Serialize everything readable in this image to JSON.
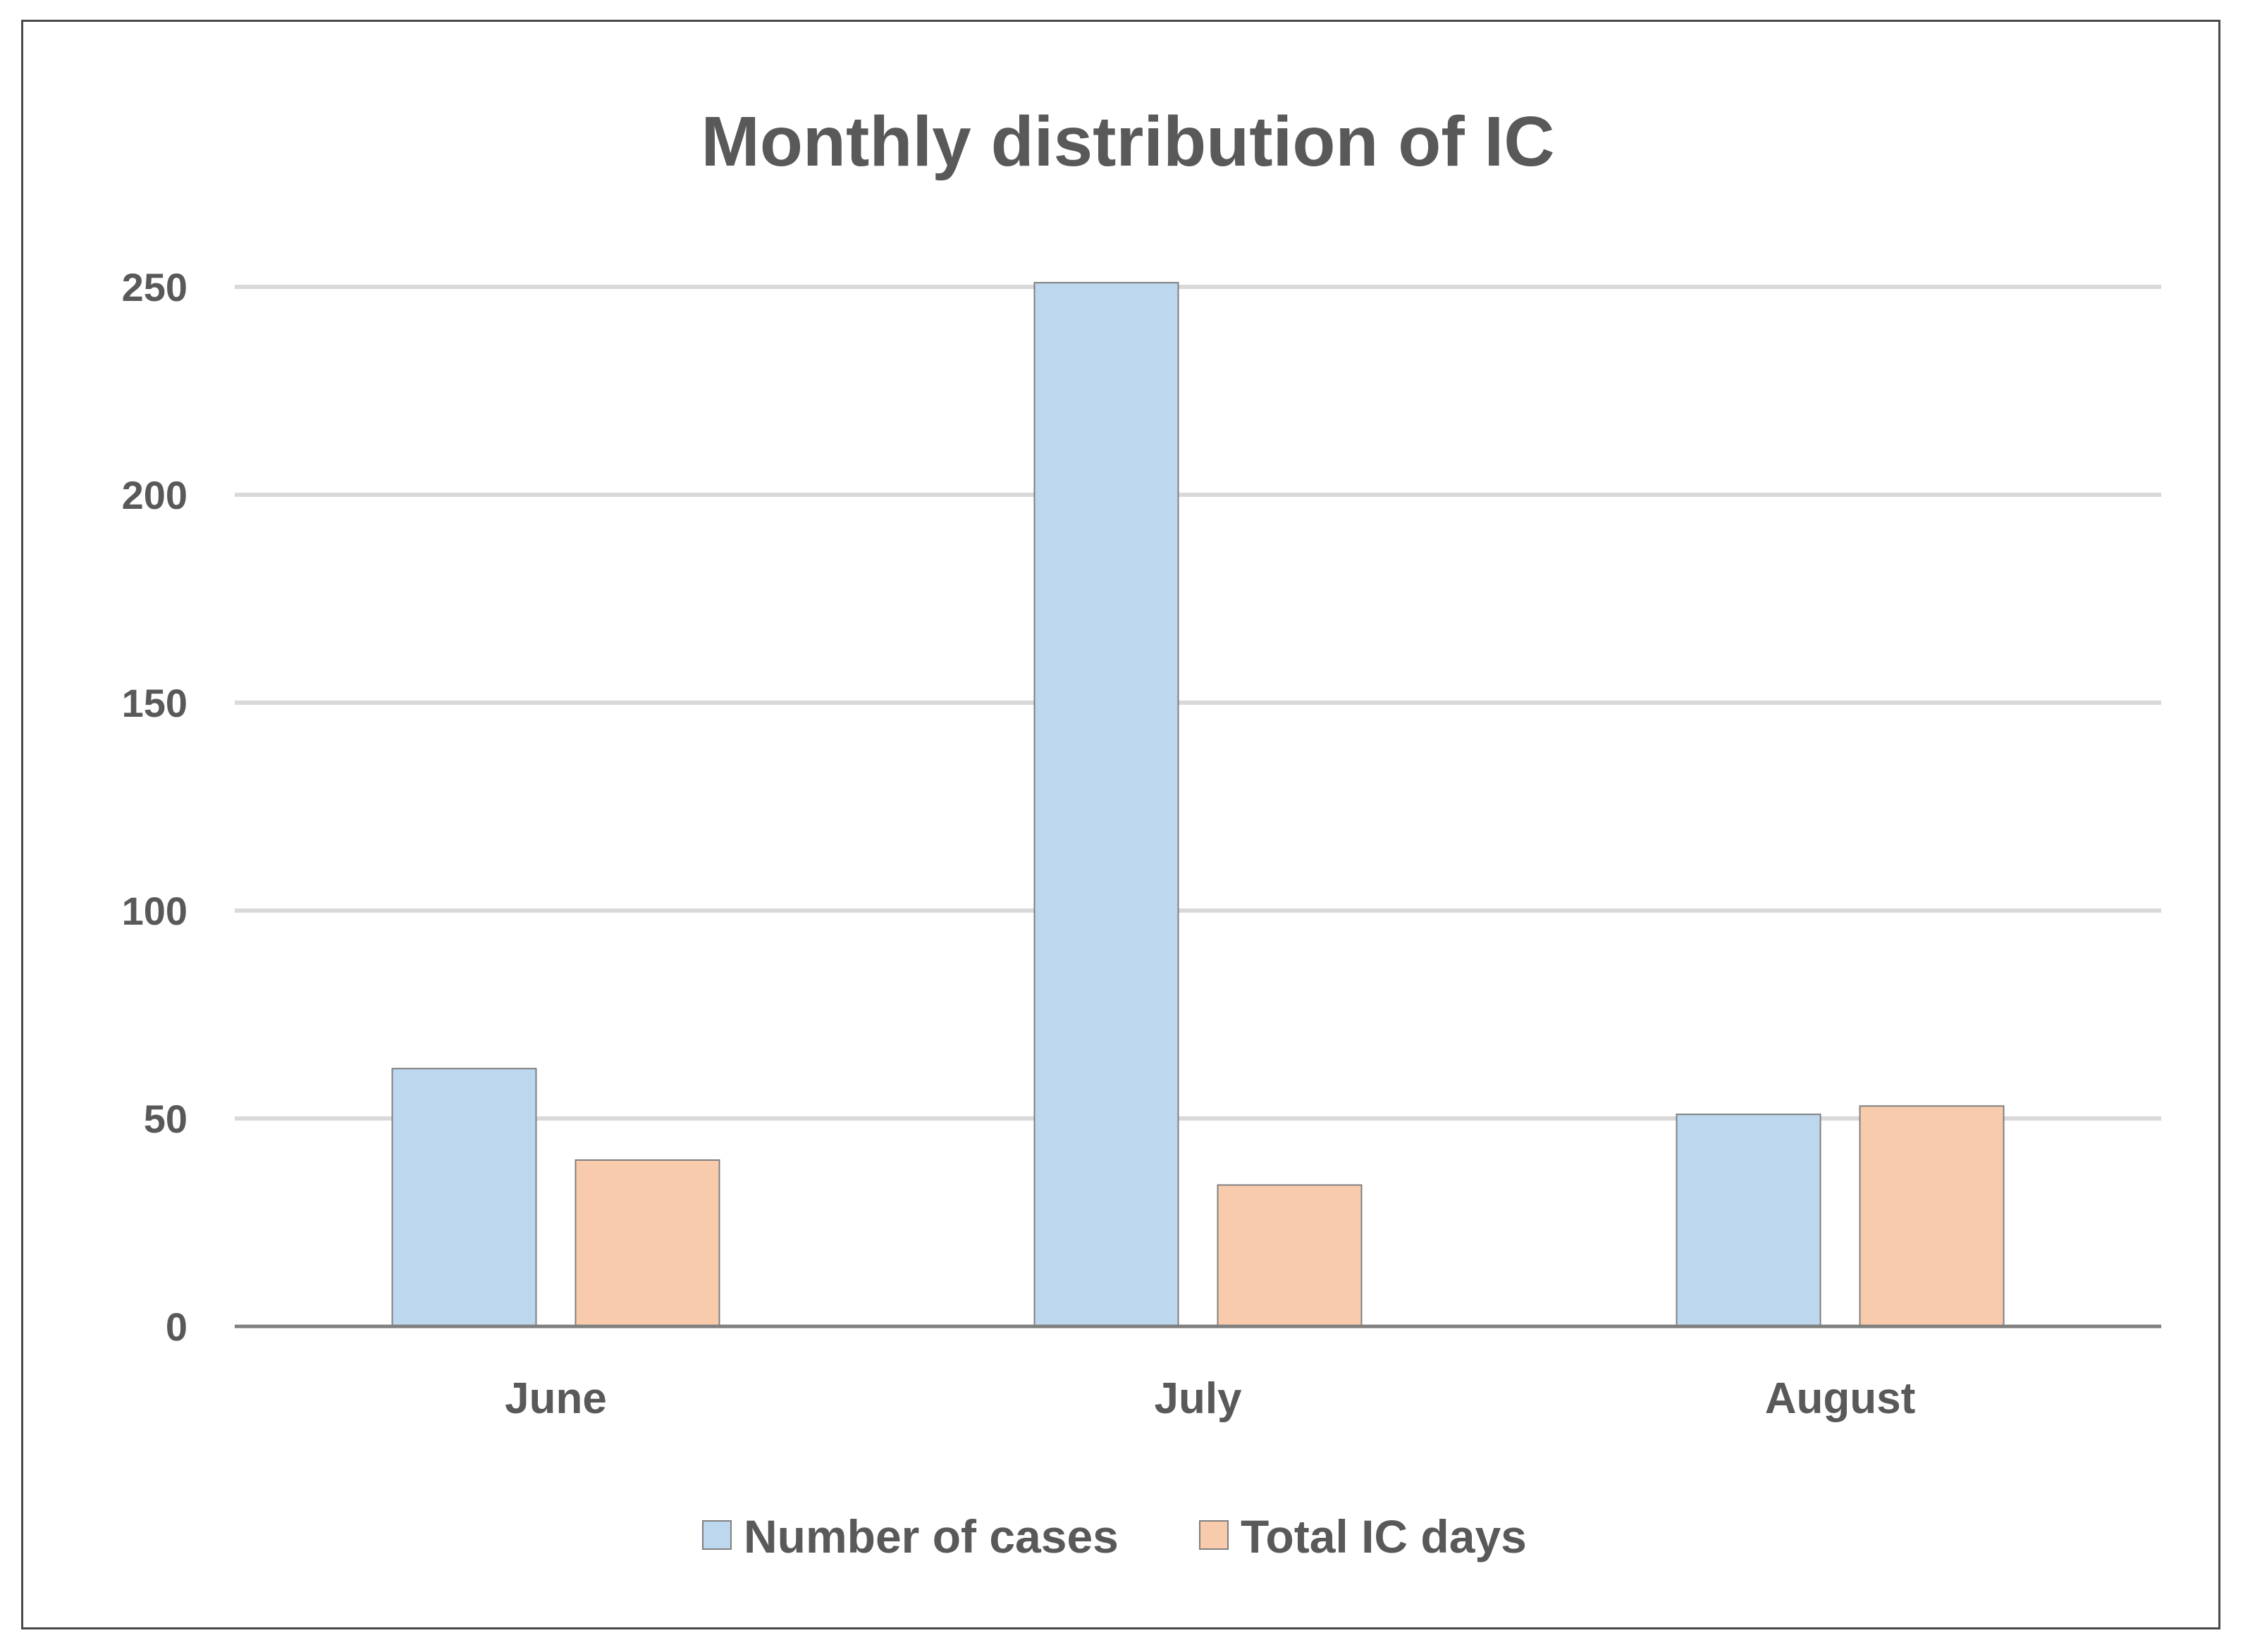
{
  "chart_data": {
    "type": "bar",
    "title": "Monthly distribution of IC",
    "categories": [
      "June",
      "July",
      "August"
    ],
    "series": [
      {
        "name": "Number of cases",
        "values": [
          62,
          251,
          51
        ],
        "color": "#bdd7ee",
        "stroke": "#7f7f7f"
      },
      {
        "name": "Total IC days",
        "values": [
          40,
          34,
          53
        ],
        "color": "#f8cbad",
        "stroke": "#7f7f7f"
      }
    ],
    "ylim": [
      0,
      250
    ],
    "yticks": [
      0,
      50,
      100,
      150,
      200,
      250
    ],
    "xlabel": "",
    "ylabel": "",
    "grid": true,
    "legend": "bottom",
    "colors": {
      "grid": "#d9d9d9",
      "axis": "#7f7f7f",
      "text": "#595959"
    }
  }
}
